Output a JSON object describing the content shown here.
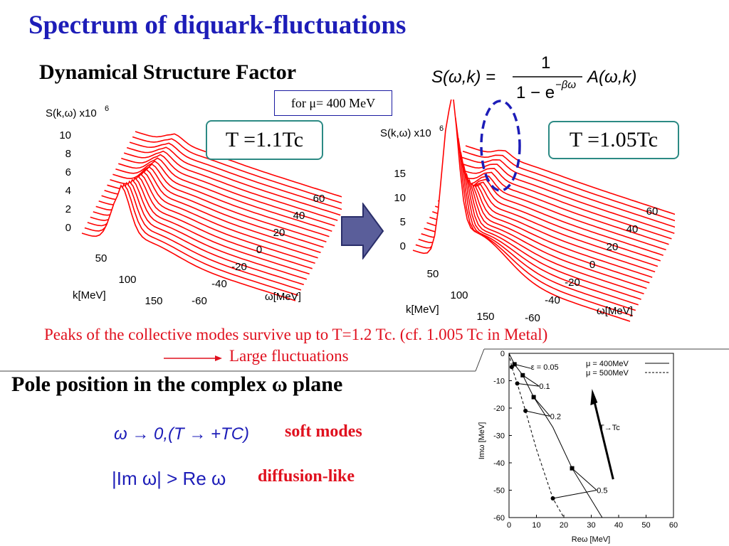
{
  "title": "Spectrum of diquark-fluctuations",
  "dsf_heading": "Dynamical Structure Factor",
  "formula": {
    "lhs": "S(ω,k) =",
    "numerator": "1",
    "denominator": "1 − e",
    "exponent": "−βω",
    "rhs": "A(ω,k)"
  },
  "mu_label": "for μ= 400 MeV",
  "left_panel": {
    "temperature_label": "T =1.1Tc",
    "z_label": "S(k,ω) x10",
    "z_exp": "6",
    "z_ticks": [
      "10",
      "8",
      "6",
      "4",
      "2",
      "0"
    ],
    "k_ticks": [
      "50",
      "100",
      "150"
    ],
    "k_label": "k[MeV]",
    "w_ticks": [
      "-60",
      "-40",
      "-20",
      "0",
      "20",
      "40",
      "60"
    ],
    "w_label": "ω[MeV]"
  },
  "right_panel": {
    "temperature_label": "T =1.05Tc",
    "z_label": "S(k,ω) x10",
    "z_exp": "6",
    "z_ticks": [
      "15",
      "10",
      "5",
      "0"
    ],
    "k_ticks": [
      "50",
      "100",
      "150"
    ],
    "k_label": "k[MeV]",
    "w_ticks": [
      "-60",
      "-40",
      "-20",
      "0",
      "20",
      "40",
      "60"
    ],
    "w_label": "ω[MeV]"
  },
  "peaks_text": "Peaks of the collective modes survive up to T=1.2 Tc. (cf. 1.005 Tc in Metal)",
  "large_text": "Large fluctuations",
  "pole_heading": "Pole position in the complex ω plane",
  "soft_formula": "ω → 0,(T → +TC)",
  "soft_label": "soft modes",
  "diff_formula": "|Im ω| > Re ω",
  "diff_label": "diffusion-like",
  "colors": {
    "title": "#1d1db8",
    "red": "#e0101e",
    "box_border": "#2c8a84",
    "arrow_fill": "#5a5e9a",
    "curve": "#ff0000"
  },
  "chart_data": {
    "type": "line",
    "xlabel": "Reω [MeV]",
    "ylabel": "Imω [MeV]",
    "xlim": [
      0,
      60
    ],
    "ylim": [
      -60,
      0
    ],
    "xticks": [
      "0",
      "10",
      "20",
      "30",
      "40",
      "50",
      "60"
    ],
    "yticks": [
      "0",
      "-10",
      "-20",
      "-30",
      "-40",
      "-50",
      "-60"
    ],
    "legend": [
      "μ = 400MeV",
      "μ = 500MeV"
    ],
    "series": [
      {
        "name": "μ = 400MeV",
        "x": [
          0,
          2,
          5,
          9,
          16,
          23,
          34
        ],
        "y": [
          0,
          -4,
          -8,
          -16,
          -27,
          -42,
          -60
        ]
      },
      {
        "name": "μ = 500MeV",
        "x": [
          0,
          1,
          3,
          6,
          10,
          16,
          20
        ],
        "y": [
          0,
          -5,
          -11,
          -21,
          -35,
          -53,
          -60
        ]
      }
    ],
    "markers_400": {
      "x": [
        2,
        5,
        9,
        23
      ],
      "y": [
        -4,
        -8,
        -16,
        -42
      ]
    },
    "markers_500": {
      "x": [
        1,
        3,
        6,
        16
      ],
      "y": [
        -5,
        -11,
        -21,
        -53
      ]
    },
    "annotations": [
      "ε = 0.05",
      "0.1",
      "0.2",
      "0.5",
      "T→Tc"
    ]
  }
}
